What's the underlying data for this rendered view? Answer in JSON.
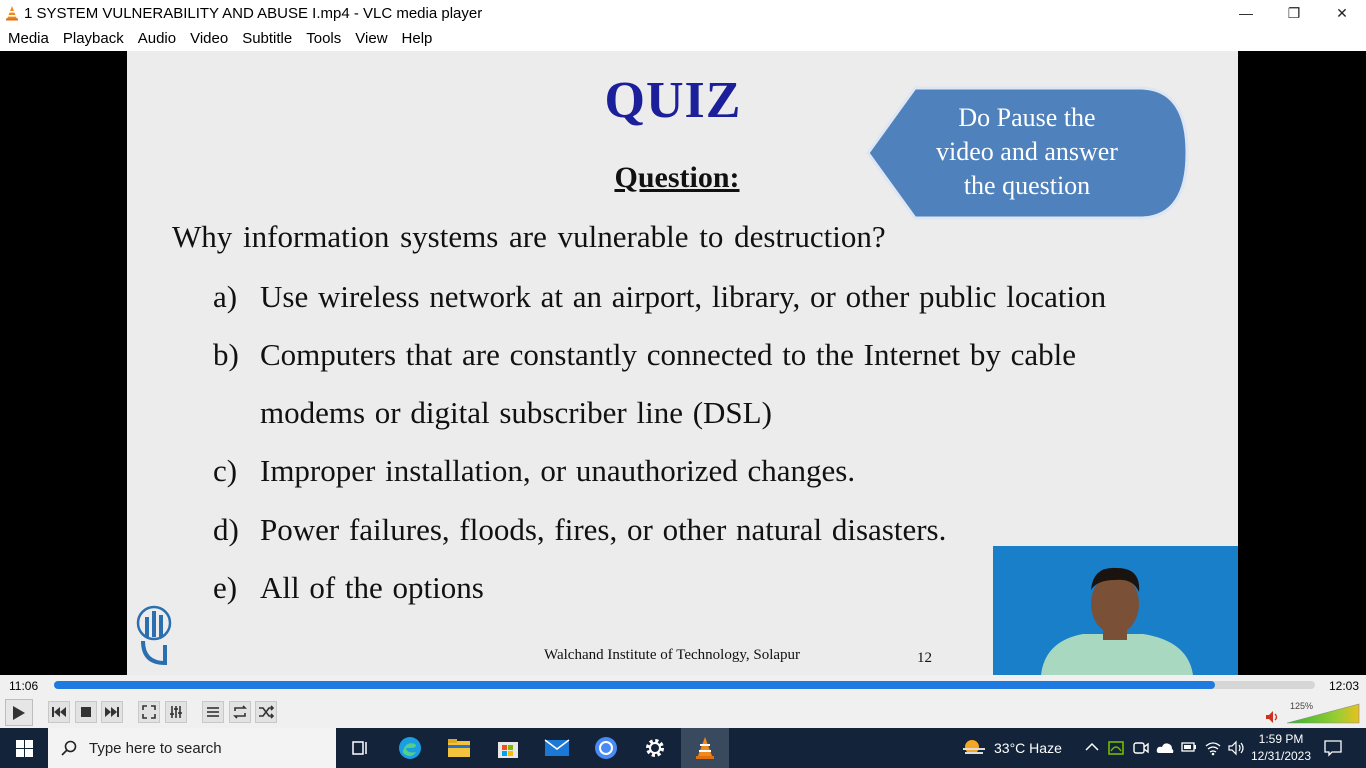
{
  "window": {
    "title": "1 SYSTEM VULNERABILITY AND ABUSE I.mp4 - VLC media player",
    "minimize_glyph": "—",
    "maximize_glyph": "❐",
    "close_glyph": "✕"
  },
  "menu": [
    "Media",
    "Playback",
    "Audio",
    "Video",
    "Subtitle",
    "Tools",
    "View",
    "Help"
  ],
  "slide": {
    "title": "QUIZ",
    "question_label": "Question:",
    "callout": [
      "Do Pause the",
      "video and answer",
      "the question"
    ],
    "question": "Why  information systems are vulnerable to destruction?",
    "options": [
      {
        "letter": "a)",
        "lines": [
          "Use wireless network at an airport, library, or other public location"
        ]
      },
      {
        "letter": "b)",
        "lines": [
          "Computers that are constantly connected to the Internet by cable",
          "modems or digital subscriber line (DSL)"
        ]
      },
      {
        "letter": "c)",
        "lines": [
          "Improper installation, or unauthorized changes."
        ]
      },
      {
        "letter": "d)",
        "lines": [
          "Power failures, floods, fires, or other natural disasters."
        ]
      },
      {
        "letter": "e)",
        "lines": [
          "All of the options"
        ]
      }
    ],
    "footer": "Walchand Institute of Technology, Solapur",
    "page_number": "12"
  },
  "player": {
    "elapsed": "11:06",
    "total": "12:03",
    "progress_fraction": 0.921,
    "volume_label": "125%",
    "accent_color": "#1f7ae0"
  },
  "taskbar": {
    "search_placeholder": "Type here to search",
    "weather": "33°C  Haze",
    "time": "1:59 PM",
    "date": "12/31/2023"
  }
}
